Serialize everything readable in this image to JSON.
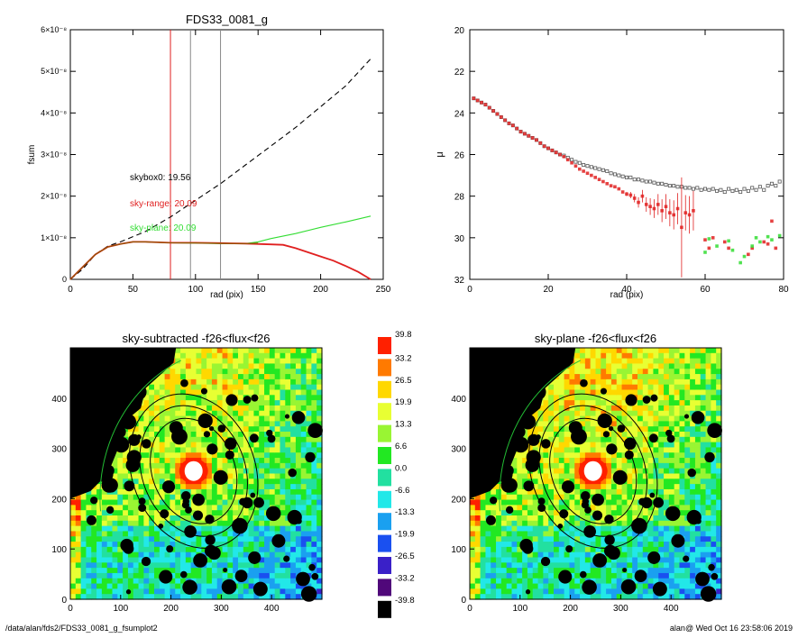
{
  "footer": {
    "path": "/data/alan/fds2/FDS33_0081_g_fsumplot2",
    "stamp": "alan@  Wed Oct 16 23:58:06 2019"
  },
  "colors": {
    "sky_range": "#e02020",
    "sky_plane": "#33dd33",
    "skybox": "#000000",
    "mask": "#000000"
  },
  "chart_data": [
    {
      "type": "line",
      "title": "FDS33_0081_g",
      "xlabel": "rad (pix)",
      "ylabel": "fsum",
      "xlim": [
        0,
        250
      ],
      "ylim": [
        0,
        6e-08
      ],
      "xticks": [
        "0",
        "50",
        "100",
        "150",
        "200",
        "250"
      ],
      "yticks": [
        "0",
        "1×10⁻⁸",
        "2×10⁻⁸",
        "3×10⁻⁸",
        "4×10⁻⁸",
        "5×10⁻⁸",
        "6×10⁻⁸"
      ],
      "vlines": [
        {
          "x": 80,
          "color": "#e02020"
        },
        {
          "x": 96,
          "color": "#888888"
        },
        {
          "x": 120,
          "color": "#888888"
        }
      ],
      "annotations": [
        {
          "text": "skybox0: 19.56",
          "color": "#000000"
        },
        {
          "text": "sky-range: 20.09",
          "color": "#e02020"
        },
        {
          "text": "sky-plane: 20.09",
          "color": "#33dd33"
        }
      ],
      "series": [
        {
          "style": "dashed",
          "color": "#000000",
          "x": [
            0,
            10,
            20,
            30,
            40,
            60,
            80,
            100,
            120,
            140,
            160,
            180,
            200,
            220,
            240
          ],
          "y": [
            0,
            2.5e-09,
            6e-09,
            8e-09,
            9e-09,
            1.15e-08,
            1.5e-08,
            1.9e-08,
            2.3e-08,
            2.75e-08,
            3.2e-08,
            3.65e-08,
            4.15e-08,
            4.65e-08,
            5.3e-08
          ]
        },
        {
          "style": "solid",
          "color": "#33dd33",
          "x": [
            0,
            10,
            20,
            30,
            40,
            50,
            60,
            80,
            100,
            120,
            140,
            150,
            160,
            180,
            200,
            220,
            240
          ],
          "y": [
            0,
            3e-09,
            6e-09,
            7.8e-09,
            8.5e-09,
            9e-09,
            9e-09,
            8.8e-09,
            8.7e-09,
            8.6e-09,
            8.6e-09,
            9e-09,
            9.8e-09,
            1.1e-08,
            1.25e-08,
            1.38e-08,
            1.52e-08
          ]
        },
        {
          "style": "solid",
          "color": "#e02020",
          "x": [
            0,
            10,
            20,
            30,
            40,
            50,
            60,
            80,
            100,
            120,
            140,
            160,
            170,
            180,
            190,
            200,
            210,
            220,
            230,
            240
          ],
          "y": [
            0,
            3e-09,
            6e-09,
            7.8e-09,
            8.5e-09,
            9e-09,
            9e-09,
            8.8e-09,
            8.8e-09,
            8.7e-09,
            8.6e-09,
            8.4e-09,
            8.3e-09,
            7.5e-09,
            6.5e-09,
            5.5e-09,
            4.5e-09,
            3.2e-09,
            1.8e-09,
            0
          ]
        },
        {
          "style": "solid",
          "color": "#8a5a00",
          "x": [
            0,
            10,
            20,
            30,
            40,
            50,
            60,
            80,
            100,
            120,
            140,
            150
          ],
          "y": [
            0,
            3e-09,
            6e-09,
            7.8e-09,
            8.5e-09,
            9e-09,
            9e-09,
            8.8e-09,
            8.75e-09,
            8.65e-09,
            8.6e-09,
            8.7e-09
          ]
        }
      ]
    },
    {
      "type": "scatter",
      "title": "",
      "xlabel": "rad (pix)",
      "ylabel": "μ",
      "xlim": [
        0,
        80
      ],
      "ylim": [
        32,
        20
      ],
      "xticks": [
        "0",
        "20",
        "40",
        "60",
        "80"
      ],
      "yticks": [
        "20",
        "22",
        "24",
        "26",
        "28",
        "30",
        "32"
      ],
      "series": [
        {
          "marker": "open-square",
          "color": "#555555",
          "x": [
            1,
            2,
            3,
            4,
            5,
            6,
            7,
            8,
            9,
            10,
            11,
            12,
            13,
            14,
            15,
            16,
            17,
            18,
            19,
            20,
            21,
            22,
            23,
            24,
            25,
            26,
            27,
            28,
            29,
            30,
            31,
            32,
            33,
            34,
            35,
            36,
            37,
            38,
            39,
            40,
            41,
            42,
            43,
            44,
            45,
            46,
            47,
            48,
            49,
            50,
            51,
            52,
            53,
            54,
            55,
            56,
            57,
            58,
            59,
            60,
            61,
            62,
            63,
            64,
            65,
            66,
            67,
            68,
            69,
            70,
            71,
            72,
            73,
            74,
            75,
            76,
            77,
            78,
            79
          ],
          "y": [
            23.3,
            23.4,
            23.5,
            23.6,
            23.75,
            23.9,
            24.05,
            24.2,
            24.35,
            24.5,
            24.6,
            24.75,
            24.9,
            25.0,
            25.1,
            25.2,
            25.3,
            25.45,
            25.6,
            25.7,
            25.8,
            25.9,
            26.0,
            26.05,
            26.15,
            26.25,
            26.35,
            26.4,
            26.5,
            26.55,
            26.6,
            26.65,
            26.7,
            26.75,
            26.8,
            26.9,
            26.95,
            27.0,
            27.05,
            27.1,
            27.1,
            27.2,
            27.2,
            27.25,
            27.3,
            27.3,
            27.35,
            27.4,
            27.4,
            27.45,
            27.5,
            27.5,
            27.55,
            27.55,
            27.6,
            27.6,
            27.65,
            27.6,
            27.7,
            27.65,
            27.7,
            27.65,
            27.75,
            27.7,
            27.8,
            27.65,
            27.75,
            27.7,
            27.8,
            27.65,
            27.75,
            27.6,
            27.7,
            27.55,
            27.7,
            27.5,
            27.4,
            27.5,
            27.3
          ]
        },
        {
          "marker": "filled-square",
          "color": "#e02020",
          "x": [
            1,
            2,
            3,
            4,
            5,
            6,
            7,
            8,
            9,
            10,
            11,
            12,
            13,
            14,
            15,
            16,
            17,
            18,
            19,
            20,
            21,
            22,
            23,
            24,
            25,
            26,
            27,
            28,
            29,
            30,
            31,
            32,
            33,
            34,
            35,
            36,
            37,
            38,
            39,
            40,
            41,
            42,
            43,
            44,
            45,
            46,
            47,
            48,
            49,
            50,
            51,
            52,
            53,
            54,
            55,
            56,
            57,
            60,
            61,
            62,
            65,
            66,
            71,
            72,
            75,
            76,
            77,
            78
          ],
          "y": [
            23.3,
            23.4,
            23.5,
            23.6,
            23.75,
            23.9,
            24.05,
            24.2,
            24.35,
            24.5,
            24.6,
            24.75,
            24.9,
            25.0,
            25.1,
            25.2,
            25.3,
            25.45,
            25.6,
            25.7,
            25.8,
            25.9,
            26.0,
            26.1,
            26.25,
            26.4,
            26.55,
            26.7,
            26.8,
            26.9,
            27.0,
            27.1,
            27.2,
            27.3,
            27.4,
            27.5,
            27.55,
            27.65,
            27.8,
            27.9,
            27.95,
            28.1,
            28.3,
            28.0,
            28.4,
            28.5,
            28.6,
            28.4,
            28.7,
            28.5,
            28.8,
            28.9,
            28.6,
            29.5,
            28.8,
            28.9,
            28.7,
            30.1,
            30.5,
            30.0,
            30.2,
            30.5,
            30.8,
            30.5,
            30.2,
            30.3,
            29.2,
            30.5
          ]
        },
        {
          "marker": "filled-square",
          "color": "#33dd33",
          "x": [
            60,
            61,
            63,
            66,
            67,
            69,
            70,
            72,
            73,
            74,
            76,
            77,
            79
          ],
          "y": [
            30.7,
            30.05,
            30.4,
            30.15,
            30.6,
            31.2,
            30.9,
            30.4,
            30.0,
            30.2,
            29.95,
            30.1,
            29.9
          ]
        }
      ]
    },
    {
      "type": "heatmap",
      "title": "sky-subtracted -f26<flux<f26",
      "xlabel": "",
      "ylabel": "",
      "xlim": [
        0,
        500
      ],
      "ylim": [
        0,
        500
      ],
      "xticks": [
        "0",
        "100",
        "200",
        "300",
        "400"
      ],
      "yticks": [
        "0",
        "100",
        "200",
        "300",
        "400"
      ],
      "source_center": [
        245,
        255
      ],
      "sky_bias": 0.45,
      "ellipses": [
        {
          "rx": 82,
          "ry": 108
        },
        {
          "rx": 102,
          "ry": 134
        },
        {
          "rx": 122,
          "ry": 158
        }
      ]
    },
    {
      "type": "heatmap",
      "title": "sky-plane -f26<flux<f26",
      "xlabel": "",
      "ylabel": "",
      "xlim": [
        0,
        500
      ],
      "ylim": [
        0,
        500
      ],
      "xticks": [
        "0",
        "100",
        "200",
        "300",
        "400"
      ],
      "yticks": [
        "0",
        "100",
        "200",
        "300",
        "400"
      ],
      "source_center": [
        245,
        255
      ],
      "sky_bias": 0.55,
      "ellipses": [
        {
          "rx": 82,
          "ry": 108
        },
        {
          "rx": 102,
          "ry": 134
        },
        {
          "rx": 122,
          "ry": 158
        }
      ]
    },
    {
      "type": "heatmap",
      "title": "",
      "colorbar_labels": [
        "39.8",
        "33.2",
        "26.5",
        "19.9",
        "13.3",
        "6.6",
        "0.0",
        "-6.6",
        "-13.3",
        "-19.9",
        "-26.5",
        "-33.2",
        "-39.8"
      ],
      "colorbar_colors": [
        "#ff2000",
        "#ff7a00",
        "#ffd800",
        "#e8ff33",
        "#99f533",
        "#22e822",
        "#22e0a0",
        "#22e8e8",
        "#1aa0f0",
        "#1a50f0",
        "#3a20c8",
        "#50087a",
        "#000000"
      ]
    }
  ]
}
